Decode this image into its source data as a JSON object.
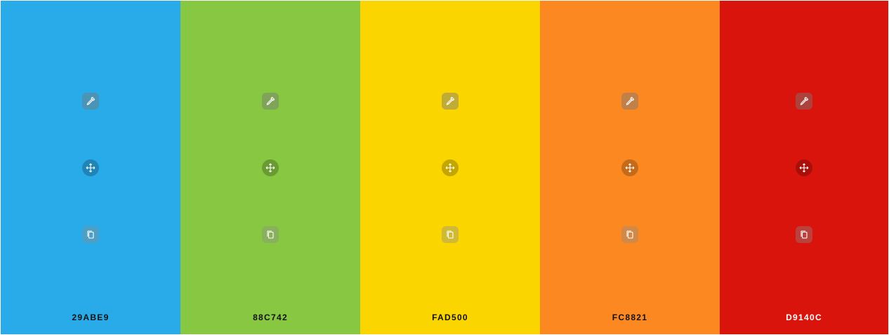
{
  "palette": {
    "swatches": [
      {
        "hex": "29ABE9",
        "color": "#29ABE9",
        "text_color": "dark"
      },
      {
        "hex": "88C742",
        "color": "#88C742",
        "text_color": "dark"
      },
      {
        "hex": "FAD500",
        "color": "#FAD500",
        "text_color": "dark"
      },
      {
        "hex": "FC8821",
        "color": "#FC8821",
        "text_color": "dark"
      },
      {
        "hex": "D9140C",
        "color": "#D9140C",
        "text_color": "light"
      }
    ],
    "icons": {
      "picker": "eyedropper-icon",
      "drag": "move-icon",
      "copy": "copy-icon"
    }
  }
}
